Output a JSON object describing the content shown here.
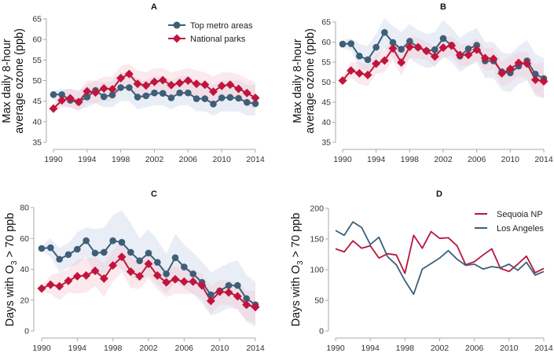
{
  "colors": {
    "metro": "#3d5f78",
    "parks": "#c2143c",
    "metro_band": "#c9d3e6",
    "parks_band": "#f4c7d2",
    "sequoia": "#b8153f",
    "los_angeles": "#3d5f78"
  },
  "chart_data": [
    {
      "id": "A",
      "type": "line",
      "title": "A",
      "xlabel": "",
      "ylabel": [
        "Max daily 8-hour",
        "average ozone (ppb)"
      ],
      "xlim": [
        1990,
        2014
      ],
      "ylim": [
        35,
        65
      ],
      "xticks": [
        "1990",
        "1994",
        "1998",
        "2002",
        "2006",
        "2010",
        "2014"
      ],
      "yticks": [
        "35",
        "40",
        "45",
        "50",
        "55",
        "60",
        "65"
      ],
      "grid": false,
      "legend": {
        "placement": "top-right",
        "entries": [
          "Top metro areas",
          "National parks"
        ]
      },
      "x": [
        1990,
        1991,
        1992,
        1993,
        1994,
        1995,
        1996,
        1997,
        1998,
        1999,
        2000,
        2001,
        2002,
        2003,
        2004,
        2005,
        2006,
        2007,
        2008,
        2009,
        2010,
        2011,
        2012,
        2013,
        2014
      ],
      "series": [
        {
          "name": "Top metro areas",
          "marker": "circle",
          "values": [
            46.6,
            46.6,
            45.2,
            44.8,
            46.0,
            47.6,
            46.1,
            46.5,
            48.3,
            48.3,
            46.0,
            46.3,
            47.0,
            46.9,
            45.8,
            47.0,
            47.0,
            45.6,
            45.6,
            44.3,
            45.8,
            45.9,
            45.7,
            44.7,
            44.4
          ],
          "band_upper": [
            47.5,
            48.0,
            48.0,
            47.5,
            49.0,
            50.0,
            49.5,
            50.0,
            52.0,
            52.0,
            50.5,
            50.0,
            51.0,
            51.0,
            50.0,
            51.0,
            51.0,
            50.0,
            50.0,
            49.0,
            50.0,
            50.0,
            50.0,
            49.0,
            49.0
          ],
          "band_lower": [
            45.5,
            44.0,
            43.5,
            43.0,
            43.5,
            44.5,
            43.5,
            43.5,
            45.0,
            45.0,
            43.0,
            43.5,
            44.0,
            44.0,
            43.0,
            44.0,
            44.0,
            42.5,
            42.5,
            41.5,
            42.5,
            42.5,
            42.5,
            41.5,
            41.5
          ]
        },
        {
          "name": "National parks",
          "marker": "diamond",
          "values": [
            43.2,
            45.2,
            45.7,
            44.8,
            47.4,
            47.1,
            48.1,
            47.9,
            50.6,
            51.6,
            49.2,
            48.8,
            49.7,
            50.1,
            48.9,
            49.4,
            50.0,
            49.2,
            49.0,
            47.3,
            48.7,
            49.0,
            48.0,
            47.0,
            45.8
          ],
          "band_upper": [
            44.0,
            47.5,
            48.0,
            47.5,
            50.0,
            50.0,
            51.0,
            51.0,
            53.5,
            54.0,
            52.5,
            52.0,
            53.0,
            53.0,
            52.0,
            52.5,
            53.0,
            52.5,
            52.0,
            51.0,
            52.0,
            52.0,
            51.5,
            50.5,
            49.5
          ],
          "band_lower": [
            42.5,
            43.5,
            43.5,
            42.5,
            44.5,
            44.5,
            45.0,
            45.0,
            47.5,
            48.5,
            46.0,
            45.5,
            46.5,
            47.0,
            46.0,
            46.5,
            47.0,
            46.0,
            46.0,
            44.5,
            45.5,
            46.0,
            45.0,
            44.0,
            43.0
          ]
        }
      ]
    },
    {
      "id": "B",
      "type": "line",
      "title": "B",
      "xlabel": "",
      "ylabel": [
        "Max daily 8-hour",
        "average ozone (ppb)"
      ],
      "xlim": [
        1990,
        2014
      ],
      "ylim": [
        35,
        65
      ],
      "xticks": [
        "1990",
        "1994",
        "1998",
        "2002",
        "2006",
        "2010",
        "2014"
      ],
      "yticks": [
        "35",
        "40",
        "45",
        "50",
        "55",
        "60",
        "65"
      ],
      "grid": false,
      "x": [
        1990,
        1991,
        1992,
        1993,
        1994,
        1995,
        1996,
        1997,
        1998,
        1999,
        2000,
        2001,
        2002,
        2003,
        2004,
        2005,
        2006,
        2007,
        2008,
        2009,
        2010,
        2011,
        2012,
        2013,
        2014
      ],
      "series": [
        {
          "name": "Top metro areas",
          "marker": "circle",
          "values": [
            59.5,
            59.6,
            56.5,
            55.6,
            58.7,
            62.4,
            59.9,
            58.2,
            60.2,
            58.7,
            57.8,
            58.1,
            60.9,
            59.2,
            56.5,
            58.3,
            59.2,
            55.3,
            55.3,
            52.6,
            52.3,
            54.0,
            55.3,
            52.0,
            50.9
          ],
          "band_upper": [
            60.5,
            61.0,
            59.5,
            59.0,
            62.0,
            66.0,
            64.0,
            62.5,
            64.5,
            63.0,
            62.0,
            62.5,
            65.5,
            63.5,
            61.0,
            62.5,
            63.5,
            60.0,
            60.0,
            57.5,
            57.0,
            59.0,
            60.5,
            57.0,
            56.0
          ],
          "band_lower": [
            58.5,
            58.0,
            53.5,
            52.5,
            55.5,
            58.5,
            56.0,
            54.0,
            56.0,
            54.5,
            53.5,
            54.0,
            56.5,
            55.0,
            52.5,
            54.0,
            55.0,
            51.0,
            51.0,
            48.0,
            47.5,
            49.5,
            50.5,
            47.0,
            46.0
          ]
        },
        {
          "name": "National parks",
          "marker": "diamond",
          "values": [
            50.4,
            52.9,
            52.2,
            51.8,
            54.6,
            55.4,
            58.4,
            54.9,
            58.8,
            58.7,
            57.8,
            56.4,
            58.6,
            59.1,
            56.8,
            56.8,
            58.1,
            56.0,
            55.8,
            52.2,
            53.3,
            54.8,
            54.6,
            50.6,
            50.2
          ],
          "band_upper": [
            51.5,
            55.0,
            55.0,
            54.5,
            57.0,
            58.0,
            61.0,
            58.0,
            61.5,
            61.0,
            60.0,
            59.0,
            61.0,
            61.5,
            59.5,
            59.5,
            61.0,
            58.5,
            58.5,
            55.0,
            56.5,
            57.5,
            57.5,
            54.5,
            55.0
          ],
          "band_lower": [
            49.5,
            51.0,
            49.5,
            49.0,
            52.0,
            52.5,
            55.5,
            51.5,
            56.0,
            56.0,
            55.5,
            54.0,
            56.0,
            56.5,
            54.0,
            54.0,
            55.5,
            53.0,
            53.0,
            49.0,
            50.0,
            51.5,
            51.0,
            46.5,
            46.0
          ]
        }
      ]
    },
    {
      "id": "C",
      "type": "line",
      "title": "C",
      "xlabel": "",
      "ylabel": [
        "Days with O₃ > 70 ppb"
      ],
      "xlim": [
        1990,
        2014
      ],
      "ylim": [
        0,
        80
      ],
      "xticks": [
        "1990",
        "1994",
        "1998",
        "2002",
        "2006",
        "2010",
        "2014"
      ],
      "yticks": [
        "0",
        "20",
        "40",
        "60",
        "80"
      ],
      "grid": false,
      "x": [
        1990,
        1991,
        1992,
        1993,
        1994,
        1995,
        1996,
        1997,
        1998,
        1999,
        2000,
        2001,
        2002,
        2003,
        2004,
        2005,
        2006,
        2007,
        2008,
        2009,
        2010,
        2011,
        2012,
        2013,
        2014
      ],
      "series": [
        {
          "name": "Top metro areas",
          "marker": "circle",
          "values": [
            53.5,
            54.0,
            46.5,
            49.5,
            53.0,
            58.5,
            50.5,
            51.0,
            58.5,
            57.5,
            51.0,
            45.5,
            50.5,
            44.5,
            37.0,
            47.5,
            41.5,
            37.0,
            31.5,
            23.5,
            26.0,
            29.5,
            29.5,
            21.0,
            17.0
          ],
          "band_upper": [
            55.0,
            60.0,
            54.0,
            57.0,
            64.0,
            67.0,
            66.0,
            67.0,
            75.0,
            78.0,
            70.0,
            60.0,
            66.0,
            59.0,
            50.0,
            63.0,
            56.0,
            51.0,
            45.0,
            38.0,
            41.0,
            44.0,
            46.0,
            36.0,
            32.0
          ],
          "band_lower": [
            52.0,
            48.0,
            38.0,
            41.0,
            43.0,
            48.0,
            36.0,
            37.0,
            42.0,
            40.0,
            35.0,
            32.0,
            36.0,
            30.0,
            24.0,
            32.0,
            28.0,
            24.0,
            18.0,
            10.0,
            12.0,
            15.0,
            14.0,
            6.0,
            3.0
          ]
        },
        {
          "name": "National parks",
          "marker": "diamond",
          "values": [
            27.5,
            30.0,
            29.0,
            32.5,
            35.5,
            36.0,
            39.0,
            34.0,
            42.5,
            48.0,
            38.5,
            35.5,
            43.5,
            36.0,
            31.5,
            33.5,
            32.0,
            32.0,
            29.5,
            19.5,
            25.5,
            25.0,
            22.5,
            17.0,
            15.5
          ],
          "band_upper": [
            29.0,
            36.0,
            38.0,
            40.0,
            46.0,
            47.0,
            48.0,
            44.0,
            52.0,
            58.0,
            48.0,
            45.0,
            52.0,
            45.0,
            40.0,
            42.0,
            40.0,
            40.0,
            37.0,
            29.0,
            33.0,
            33.0,
            31.0,
            26.0,
            26.0
          ],
          "band_lower": [
            26.0,
            24.0,
            20.0,
            25.0,
            24.0,
            25.0,
            29.0,
            22.0,
            32.0,
            38.0,
            28.0,
            27.0,
            34.0,
            27.0,
            22.0,
            24.0,
            24.0,
            24.0,
            21.0,
            11.0,
            17.0,
            17.0,
            14.0,
            7.0,
            5.0
          ]
        }
      ]
    },
    {
      "id": "D",
      "type": "line",
      "title": "D",
      "xlabel": "",
      "ylabel": [
        "Days with O₃ > 70 ppb"
      ],
      "xlim": [
        1990,
        2014
      ],
      "ylim": [
        0,
        200
      ],
      "xticks": [
        "1990",
        "1994",
        "1998",
        "2002",
        "2006",
        "2010",
        "2014"
      ],
      "yticks": [
        "0",
        "50",
        "100",
        "150",
        "200"
      ],
      "grid": false,
      "legend": {
        "placement": "top-right",
        "entries": [
          "Sequoia NP",
          "Los Angeles"
        ]
      },
      "x": [
        1990,
        1991,
        1992,
        1993,
        1994,
        1995,
        1996,
        1997,
        1998,
        1999,
        2000,
        2001,
        2002,
        2003,
        2004,
        2005,
        2006,
        2007,
        2008,
        2009,
        2010,
        2011,
        2012,
        2013,
        2014
      ],
      "series": [
        {
          "name": "Sequoia NP",
          "marker": "none",
          "values": [
            134,
            129,
            147,
            135,
            139,
            119,
            126,
            124,
            94,
            156,
            135,
            162,
            151,
            152,
            139,
            108,
            113,
            124,
            134,
            102,
            97,
            109,
            122,
            95,
            102
          ]
        },
        {
          "name": "Los Angeles",
          "marker": "none",
          "values": [
            164,
            156,
            178,
            169,
            141,
            153,
            121,
            108,
            82,
            60,
            101,
            110,
            119,
            131,
            117,
            107,
            109,
            101,
            105,
            103,
            109,
            99,
            112,
            91,
            97
          ]
        }
      ]
    }
  ]
}
